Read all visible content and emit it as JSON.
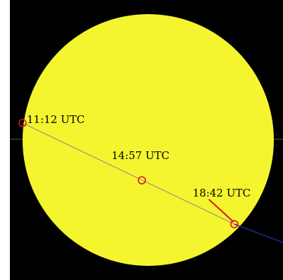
{
  "colors": {
    "sky": "#000000",
    "sun": "#f4f52e",
    "transit_path": "#8c8c8c",
    "marker": "#e3141c",
    "exit_segment": "#e3141c",
    "outside_path": "#1a2a8c",
    "horizon": "#5a5a3a"
  },
  "events": {
    "ingress": {
      "time": "11:12 UTC"
    },
    "greatest": {
      "time": "14:57 UTC"
    },
    "egress": {
      "time": "18:42 UTC"
    }
  }
}
